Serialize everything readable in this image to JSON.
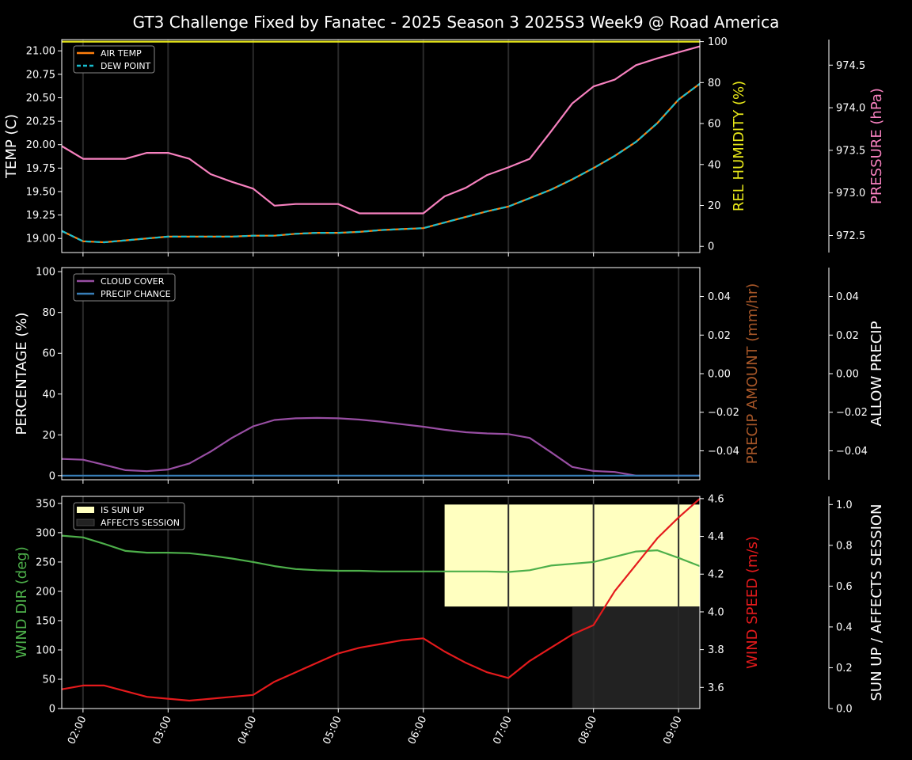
{
  "title": "GT3 Challenge Fixed by Fanatec - 2025 Season 3 2025S3 Week9 @ Road America",
  "x_ticks": [
    "02:00",
    "03:00",
    "04:00",
    "05:00",
    "06:00",
    "07:00",
    "08:00",
    "09:00"
  ],
  "times": [
    "01:45",
    "02:00",
    "02:15",
    "02:30",
    "02:45",
    "03:00",
    "03:15",
    "03:30",
    "03:45",
    "04:00",
    "04:15",
    "04:30",
    "04:45",
    "05:00",
    "05:15",
    "05:30",
    "05:45",
    "06:00",
    "06:15",
    "06:30",
    "06:45",
    "07:00",
    "07:15",
    "07:30",
    "07:45",
    "08:00",
    "08:15",
    "08:30",
    "08:45",
    "09:00",
    "09:15"
  ],
  "colors": {
    "air_temp": "#ff7f0e",
    "dew_point": "#17becf",
    "humidity": "#e6e619",
    "pressure": "#f781bf",
    "cloud": "#984ea3",
    "precip_chance": "#377eb8",
    "precip_amount": "#a65628",
    "wind_dir": "#4daf4a",
    "wind_speed": "#e41a1c",
    "sun": "#ffffc0",
    "session": "#222222"
  },
  "chart_data": [
    {
      "type": "line",
      "ylabel": "TEMP (C)",
      "ylabel_right": "REL HUMIDITY (%)",
      "ylabel_far_right": "PRESSURE (hPa)",
      "ylim": [
        18.85,
        21.12
      ],
      "ylim_right": [
        -3,
        101
      ],
      "ylim_far_right": [
        972.3,
        974.8
      ],
      "y_ticks": [
        "19.00",
        "19.25",
        "19.50",
        "19.75",
        "20.00",
        "20.25",
        "20.50",
        "20.75",
        "21.00"
      ],
      "y_ticks_right": [
        "0",
        "20",
        "40",
        "60",
        "80",
        "100"
      ],
      "y_ticks_far_right": [
        "972.5",
        "973.0",
        "973.5",
        "974.0",
        "974.5"
      ],
      "legend": [
        "AIR TEMP",
        "DEW POINT"
      ],
      "series": [
        {
          "name": "AIR TEMP",
          "axis": "left",
          "values": [
            19.08,
            18.97,
            18.96,
            18.98,
            19.0,
            19.02,
            19.02,
            19.02,
            19.02,
            19.03,
            19.03,
            19.05,
            19.06,
            19.06,
            19.07,
            19.09,
            19.1,
            19.11,
            19.17,
            19.23,
            19.29,
            19.34,
            19.43,
            19.52,
            19.63,
            19.75,
            19.88,
            20.03,
            20.23,
            20.48,
            20.65
          ]
        },
        {
          "name": "DEW POINT",
          "axis": "left",
          "values": [
            19.08,
            18.97,
            18.96,
            18.98,
            19.0,
            19.02,
            19.02,
            19.02,
            19.02,
            19.03,
            19.03,
            19.05,
            19.06,
            19.06,
            19.07,
            19.09,
            19.1,
            19.11,
            19.17,
            19.23,
            19.29,
            19.34,
            19.43,
            19.52,
            19.63,
            19.75,
            19.88,
            20.03,
            20.23,
            20.48,
            20.65
          ]
        },
        {
          "axis": "right",
          "values": [
            100,
            100,
            100,
            100,
            100,
            100,
            100,
            100,
            100,
            100,
            100,
            100,
            100,
            100,
            100,
            100,
            100,
            100,
            100,
            100,
            100,
            100,
            100,
            100,
            100,
            100,
            100,
            100,
            100,
            100,
            100
          ]
        },
        {
          "axis": "far_right",
          "values": [
            973.55,
            973.4,
            973.4,
            973.4,
            973.47,
            973.47,
            973.4,
            973.22,
            973.13,
            973.05,
            972.85,
            972.87,
            972.87,
            972.87,
            972.76,
            972.76,
            972.76,
            972.76,
            972.96,
            973.06,
            973.21,
            973.3,
            973.4,
            973.72,
            974.05,
            974.25,
            974.33,
            974.5,
            974.58,
            974.65,
            974.72
          ]
        }
      ]
    },
    {
      "type": "line",
      "ylabel": "PERCENTAGE (%)",
      "ylabel_right": "PRECIP AMOUNT (mm/hr)",
      "ylabel_far_right": "ALLOW PRECIP",
      "ylim": [
        -2,
        102
      ],
      "ylim_right": [
        -0.055,
        0.055
      ],
      "ylim_far_right": [
        -0.055,
        0.055
      ],
      "y_ticks": [
        "0",
        "20",
        "40",
        "60",
        "80",
        "100"
      ],
      "y_ticks_right": [
        "−0.04",
        "−0.02",
        "0.00",
        "0.02",
        "0.04"
      ],
      "y_ticks_far_right": [
        "−0.04",
        "−0.02",
        "0.00",
        "0.02",
        "0.04"
      ],
      "legend": [
        "CLOUD COVER",
        "PRECIP CHANCE"
      ],
      "series": [
        {
          "name": "CLOUD COVER",
          "values": [
            8.2,
            7.8,
            5.3,
            2.7,
            2.2,
            3.0,
            6.0,
            11.8,
            18.5,
            24.2,
            27.3,
            28.1,
            28.3,
            28.1,
            27.5,
            26.5,
            25.2,
            24.0,
            22.5,
            21.3,
            20.7,
            20.4,
            18.5,
            11.5,
            4.3,
            2.3,
            1.8,
            0,
            0,
            0,
            0
          ]
        },
        {
          "name": "PRECIP CHANCE",
          "values": [
            0,
            0,
            0,
            0,
            0,
            0,
            0,
            0,
            0,
            0,
            0,
            0,
            0,
            0,
            0,
            0,
            0,
            0,
            0,
            0,
            0,
            0,
            0,
            0,
            0,
            0,
            0,
            0,
            0,
            0,
            0
          ]
        }
      ]
    },
    {
      "type": "line",
      "ylabel": "WIND DIR (deg)",
      "ylabel_right": "WIND SPEED (m/s)",
      "ylabel_far_right": "SUN UP / AFFECTS SESSION",
      "ylim": [
        0,
        362
      ],
      "ylim_right": [
        3.488,
        4.612
      ],
      "ylim_far_right": [
        0,
        1.04
      ],
      "y_ticks": [
        "0",
        "50",
        "100",
        "150",
        "200",
        "250",
        "300",
        "350"
      ],
      "y_ticks_right": [
        "3.6",
        "3.8",
        "4.0",
        "4.2",
        "4.4",
        "4.6"
      ],
      "y_ticks_far_right": [
        "0.0",
        "0.2",
        "0.4",
        "0.6",
        "0.8",
        "1.0"
      ],
      "legend": [
        "IS SUN UP",
        "AFFECTS SESSION"
      ],
      "sun_up_from": "06:15",
      "affects_session_from": "07:45",
      "series": [
        {
          "name": "WIND DIR",
          "values": [
            295,
            292,
            281,
            269,
            266,
            266,
            265,
            261,
            256,
            250,
            243,
            238,
            236,
            235,
            235,
            234,
            234,
            234,
            234,
            234,
            234,
            233,
            236,
            244,
            247,
            250,
            259,
            268,
            270,
            257,
            243
          ]
        },
        {
          "name": "WIND SPEED",
          "values": [
            3.59,
            3.61,
            3.61,
            3.58,
            3.55,
            3.54,
            3.53,
            3.54,
            3.55,
            3.56,
            3.63,
            3.68,
            3.73,
            3.78,
            3.81,
            3.83,
            3.85,
            3.86,
            3.79,
            3.73,
            3.68,
            3.65,
            3.74,
            3.81,
            3.88,
            3.93,
            4.11,
            4.25,
            4.39,
            4.5,
            4.6
          ]
        }
      ]
    }
  ]
}
